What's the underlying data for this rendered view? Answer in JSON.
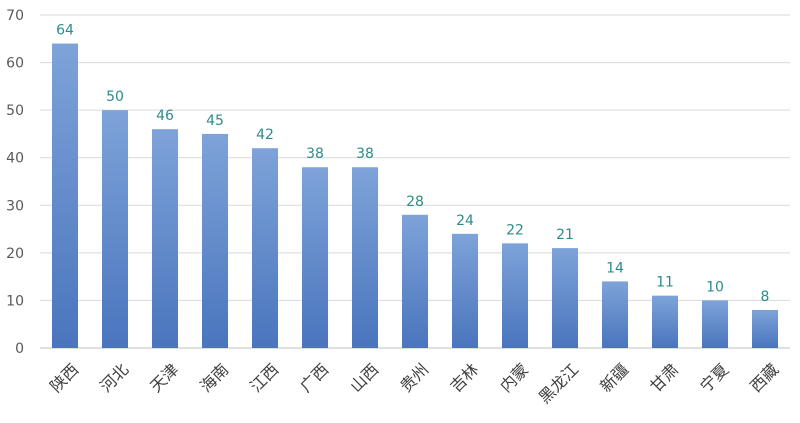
{
  "chart_data": {
    "type": "bar",
    "categories": [
      "陕西",
      "河北",
      "天津",
      "海南",
      "江西",
      "广西",
      "山西",
      "贵州",
      "吉林",
      "内蒙",
      "黑龙江",
      "新疆",
      "甘肃",
      "宁夏",
      "西藏"
    ],
    "values": [
      64,
      50,
      46,
      45,
      42,
      38,
      38,
      28,
      24,
      22,
      21,
      14,
      11,
      10,
      8
    ],
    "ylim": [
      0,
      70
    ],
    "yticks": [
      0,
      10,
      20,
      30,
      40,
      50,
      60,
      70
    ],
    "grid": true,
    "legend": "none",
    "title": "",
    "xlabel": "",
    "ylabel": ""
  },
  "colors": {
    "bar_top": "#7ea3d9",
    "bar_bottom": "#4a75bd",
    "data_label": "#2e8b8b"
  }
}
